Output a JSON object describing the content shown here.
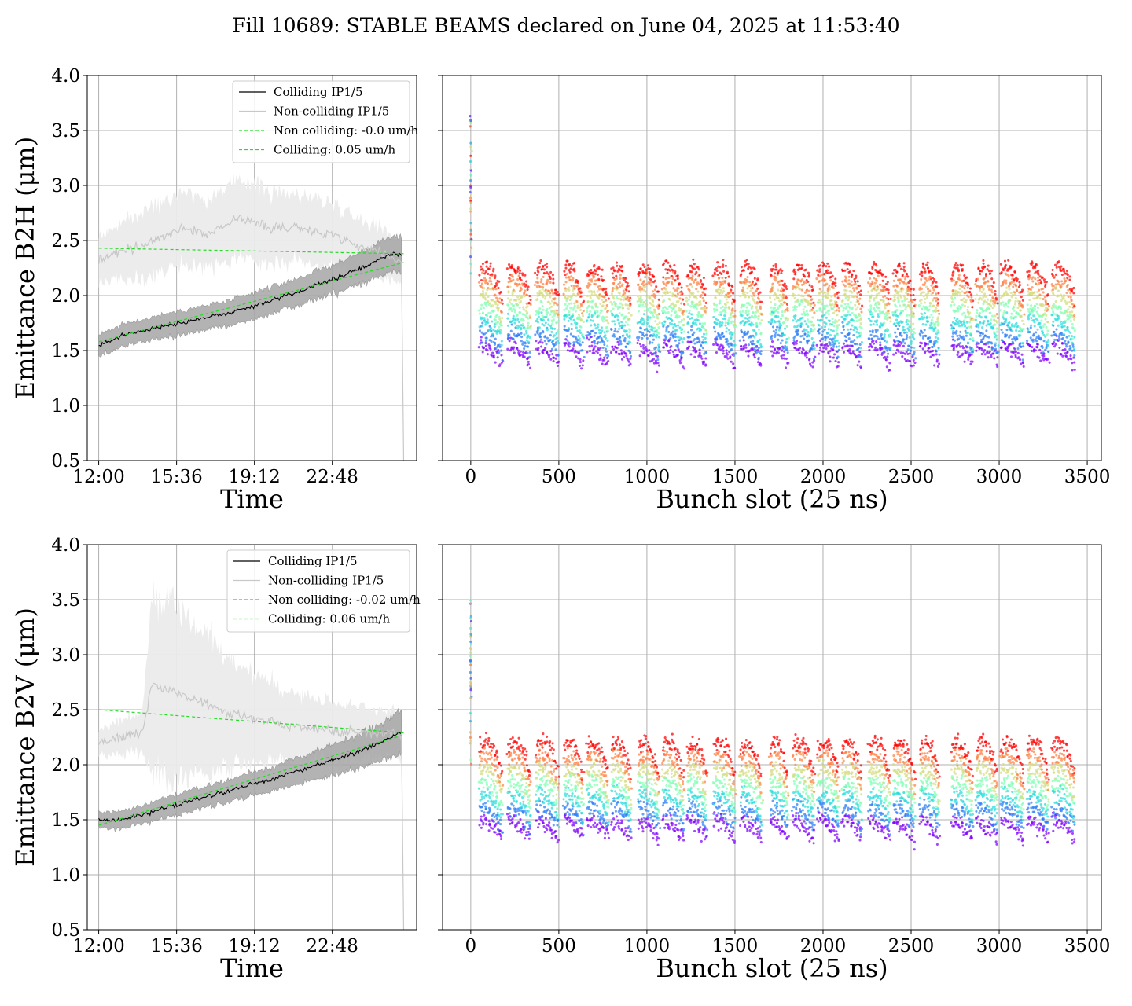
{
  "title": "Fill 10689: STABLE BEAMS declared on June 04, 2025 at 11:53:40",
  "colors": {
    "colliding": "#000000",
    "colliding_band": "#a6a6a6",
    "noncolliding": "#c8c8c8",
    "noncolliding_band": "#ebebeb",
    "fit": "#22dd22",
    "grid": "#b0b0b0",
    "bunch_colormap": [
      "#7f00ff",
      "#2c7ef7",
      "#2adddd",
      "#82ffb4",
      "#d4dd80",
      "#ff8144",
      "#ff0000"
    ]
  },
  "chart_data": [
    {
      "type": "line",
      "id": "h-time",
      "xlabel": "Time",
      "ylabel": "Emittance B2H (μm)",
      "ylim": [
        0.5,
        4.0
      ],
      "yticks": [
        "0.5",
        "1.0",
        "1.5",
        "2.0",
        "2.5",
        "3.0",
        "3.5",
        "4.0"
      ],
      "xlim_hours": [
        11.47,
        26.7
      ],
      "xticks": [
        "12:00",
        "15:36",
        "19:12",
        "22:48"
      ],
      "grid": true,
      "legend_position": "top-right",
      "legend": [
        "Colliding IP1/5",
        "Non-colliding IP1/5",
        "Non colliding: -0.0 um/h",
        "Colliding: 0.05 um/h"
      ],
      "series": [
        {
          "name": "Colliding IP1/5",
          "x": [
            12.0,
            13.0,
            14.0,
            15.0,
            16.0,
            17.0,
            18.0,
            19.0,
            20.0,
            21.0,
            22.0,
            23.0,
            24.0,
            25.0,
            25.6,
            26.0,
            26.1
          ],
          "values": [
            1.55,
            1.63,
            1.68,
            1.72,
            1.76,
            1.8,
            1.84,
            1.89,
            1.96,
            2.02,
            2.09,
            2.16,
            2.24,
            2.33,
            2.38,
            2.37,
            2.35
          ],
          "band": [
            0.1,
            0.1,
            0.1,
            0.11,
            0.11,
            0.11,
            0.11,
            0.12,
            0.12,
            0.12,
            0.13,
            0.13,
            0.14,
            0.15,
            0.16,
            0.17,
            0.17
          ]
        },
        {
          "name": "Non-colliding IP1/5",
          "x": [
            12.0,
            13.0,
            14.0,
            15.0,
            16.0,
            17.0,
            18.0,
            19.0,
            20.0,
            21.0,
            22.0,
            23.0,
            24.0,
            25.0,
            25.6,
            26.0,
            26.1
          ],
          "values": [
            2.33,
            2.4,
            2.45,
            2.55,
            2.62,
            2.56,
            2.66,
            2.7,
            2.6,
            2.63,
            2.58,
            2.55,
            2.45,
            2.4,
            2.35,
            2.3,
            0.5
          ],
          "band": [
            0.2,
            0.25,
            0.3,
            0.33,
            0.34,
            0.3,
            0.34,
            0.35,
            0.33,
            0.3,
            0.3,
            0.28,
            0.26,
            0.22,
            0.2,
            0.2,
            0.2
          ]
        },
        {
          "name": "Non colliding: -0.0 um/h",
          "x": [
            12.0,
            26.1
          ],
          "values": [
            2.43,
            2.38
          ]
        },
        {
          "name": "Colliding: 0.05 um/h",
          "x": [
            12.0,
            26.1
          ],
          "values": [
            1.58,
            2.3
          ]
        }
      ]
    },
    {
      "type": "scatter",
      "id": "h-bunch",
      "xlabel": "Bunch slot (25 ns)",
      "xlim": [
        -160,
        3580
      ],
      "xticks": [
        "0",
        "500",
        "1000",
        "1500",
        "2000",
        "2500",
        "3000",
        "3500"
      ],
      "ylim": [
        0.5,
        4.0
      ],
      "grid": true,
      "train_slots": [
        [
          50,
          180
        ],
        [
          210,
          340
        ],
        [
          370,
          500
        ],
        [
          530,
          640
        ],
        [
          660,
          780
        ],
        [
          800,
          910
        ],
        [
          950,
          1070
        ],
        [
          1090,
          1210
        ],
        [
          1230,
          1340
        ],
        [
          1380,
          1500
        ],
        [
          1530,
          1650
        ],
        [
          1700,
          1800
        ],
        [
          1830,
          1950
        ],
        [
          1970,
          2090
        ],
        [
          2110,
          2220
        ],
        [
          2260,
          2380
        ],
        [
          2400,
          2520
        ],
        [
          2550,
          2660
        ],
        [
          2730,
          2850
        ],
        [
          2870,
          2990
        ],
        [
          3010,
          3140
        ],
        [
          3160,
          3280
        ],
        [
          3300,
          3430
        ]
      ],
      "pilot_slot": 0,
      "levels": {
        "min": 1.3,
        "max": 2.9,
        "typical_low": 1.55,
        "typical_high": 2.2
      }
    },
    {
      "type": "line",
      "id": "v-time",
      "xlabel": "Time",
      "ylabel": "Emittance B2V (μm)",
      "ylim": [
        0.5,
        4.0
      ],
      "yticks": [
        "0.5",
        "1.0",
        "1.5",
        "2.0",
        "2.5",
        "3.0",
        "3.5",
        "4.0"
      ],
      "xlim_hours": [
        11.47,
        26.7
      ],
      "xticks": [
        "12:00",
        "15:36",
        "19:12",
        "22:48"
      ],
      "grid": true,
      "legend_position": "top-right",
      "legend": [
        "Colliding IP1/5",
        "Non-colliding IP1/5",
        "Non colliding: -0.02 um/h",
        "Colliding: 0.06 um/h"
      ],
      "series": [
        {
          "name": "Colliding IP1/5",
          "x": [
            12.0,
            13.0,
            14.0,
            15.0,
            16.0,
            17.0,
            18.0,
            19.0,
            20.0,
            21.0,
            22.0,
            23.0,
            24.0,
            25.0,
            25.6,
            26.0,
            26.1
          ],
          "values": [
            1.5,
            1.5,
            1.54,
            1.6,
            1.66,
            1.71,
            1.76,
            1.82,
            1.87,
            1.93,
            1.99,
            2.05,
            2.12,
            2.2,
            2.26,
            2.3,
            2.3
          ],
          "band": [
            0.07,
            0.08,
            0.08,
            0.09,
            0.1,
            0.1,
            0.1,
            0.11,
            0.11,
            0.12,
            0.13,
            0.14,
            0.15,
            0.16,
            0.18,
            0.2,
            0.2
          ]
        },
        {
          "name": "Non-colliding IP1/5",
          "x": [
            12.0,
            13.0,
            14.0,
            14.5,
            15.0,
            16.0,
            17.0,
            18.0,
            19.0,
            20.0,
            21.0,
            22.0,
            23.0,
            24.0,
            25.0,
            25.6,
            26.0,
            26.1
          ],
          "values": [
            2.2,
            2.25,
            2.3,
            2.75,
            2.7,
            2.62,
            2.55,
            2.48,
            2.42,
            2.38,
            2.35,
            2.33,
            2.31,
            2.3,
            2.28,
            2.27,
            2.26,
            0.5
          ],
          "band": [
            0.12,
            0.15,
            0.18,
            0.85,
            0.8,
            0.72,
            0.62,
            0.52,
            0.42,
            0.36,
            0.3,
            0.28,
            0.26,
            0.24,
            0.22,
            0.2,
            0.2,
            0.2
          ]
        },
        {
          "name": "Non colliding: -0.02 um/h",
          "x": [
            12.0,
            26.1
          ],
          "values": [
            2.5,
            2.29
          ]
        },
        {
          "name": "Colliding: 0.06 um/h",
          "x": [
            12.0,
            26.1
          ],
          "values": [
            1.45,
            2.27
          ]
        }
      ]
    },
    {
      "type": "scatter",
      "id": "v-bunch",
      "xlabel": "Bunch slot (25 ns)",
      "xlim": [
        -160,
        3580
      ],
      "xticks": [
        "0",
        "500",
        "1000",
        "1500",
        "2000",
        "2500",
        "3000",
        "3500"
      ],
      "ylim": [
        0.5,
        4.0
      ],
      "grid": true,
      "train_slots": [
        [
          50,
          180
        ],
        [
          210,
          340
        ],
        [
          370,
          500
        ],
        [
          530,
          640
        ],
        [
          660,
          780
        ],
        [
          800,
          910
        ],
        [
          950,
          1070
        ],
        [
          1090,
          1210
        ],
        [
          1230,
          1340
        ],
        [
          1380,
          1500
        ],
        [
          1530,
          1650
        ],
        [
          1700,
          1800
        ],
        [
          1830,
          1950
        ],
        [
          1970,
          2090
        ],
        [
          2110,
          2220
        ],
        [
          2260,
          2380
        ],
        [
          2400,
          2520
        ],
        [
          2550,
          2660
        ],
        [
          2730,
          2850
        ],
        [
          2870,
          2990
        ],
        [
          3010,
          3140
        ],
        [
          3160,
          3280
        ],
        [
          3300,
          3430
        ]
      ],
      "pilot_slot": 0,
      "levels": {
        "min": 1.15,
        "max": 2.75,
        "typical_low": 1.5,
        "typical_high": 2.15
      }
    }
  ]
}
